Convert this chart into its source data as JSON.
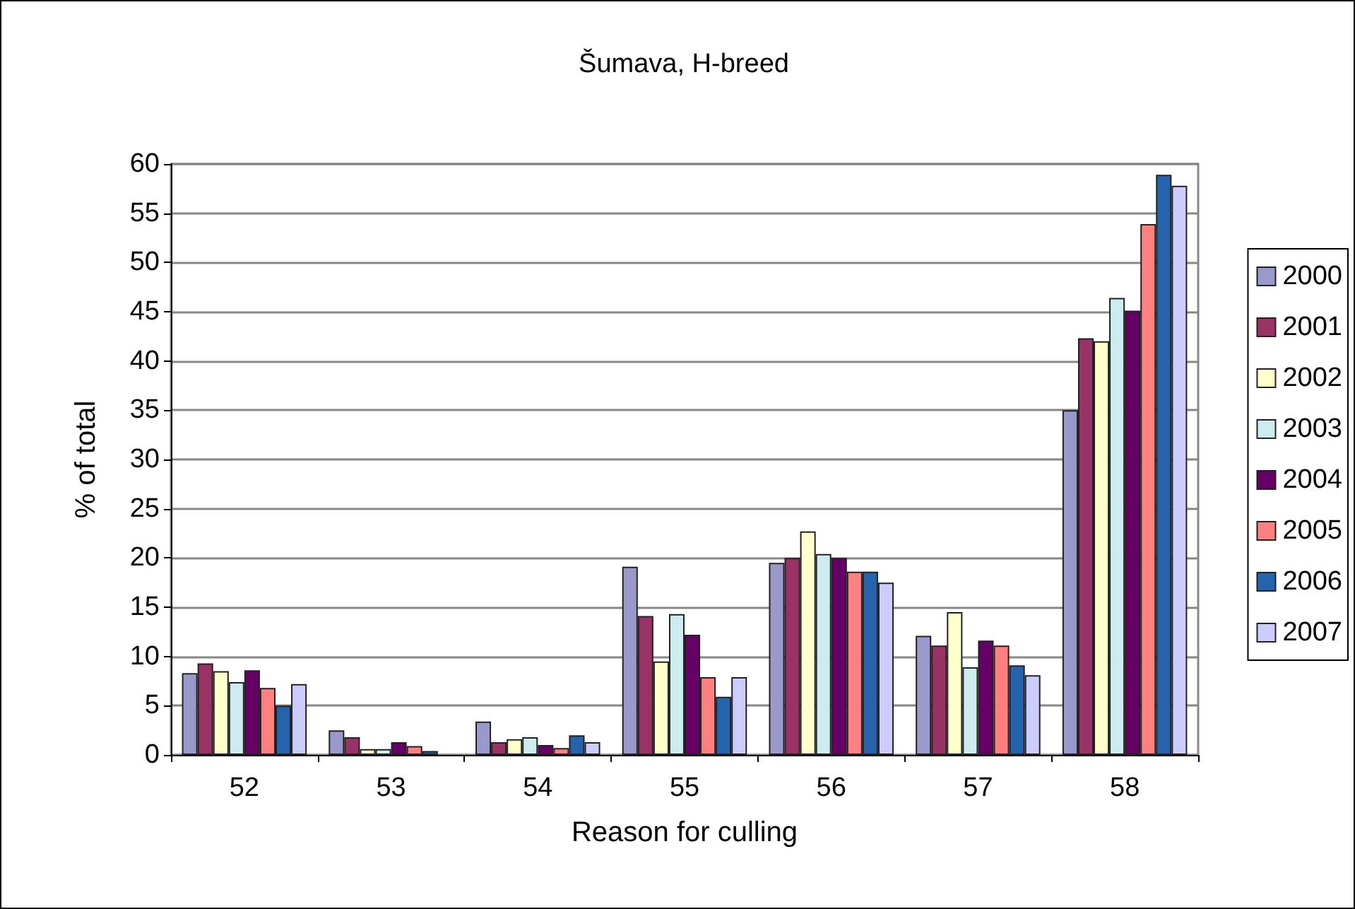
{
  "chart_data": {
    "type": "bar",
    "title": "Šumava, H-breed",
    "xlabel": "Reason for culling",
    "ylabel": "% of total",
    "categories": [
      "52",
      "53",
      "54",
      "55",
      "56",
      "57",
      "58"
    ],
    "series": [
      {
        "name": "2000",
        "color": "#9999cc",
        "values": [
          8.3,
          2.5,
          3.4,
          19.1,
          19.5,
          12.1,
          35.0
        ]
      },
      {
        "name": "2001",
        "color": "#993366",
        "values": [
          9.3,
          1.8,
          1.3,
          14.1,
          20.0,
          11.1,
          42.3
        ]
      },
      {
        "name": "2002",
        "color": "#ffffcc",
        "values": [
          8.5,
          0.6,
          1.6,
          9.5,
          22.7,
          14.5,
          42.0
        ]
      },
      {
        "name": "2003",
        "color": "#ccecef",
        "values": [
          7.4,
          0.6,
          1.8,
          14.3,
          20.4,
          8.9,
          46.4
        ]
      },
      {
        "name": "2004",
        "color": "#660066",
        "values": [
          8.6,
          1.3,
          1.0,
          12.2,
          20.0,
          11.6,
          45.1
        ]
      },
      {
        "name": "2005",
        "color": "#ff8080",
        "values": [
          6.8,
          0.9,
          0.7,
          7.9,
          18.6,
          11.1,
          53.9
        ]
      },
      {
        "name": "2006",
        "color": "#2563ad",
        "values": [
          5.0,
          0.4,
          2.0,
          5.9,
          18.6,
          9.1,
          58.9
        ]
      },
      {
        "name": "2007",
        "color": "#ccccff",
        "values": [
          7.2,
          null,
          1.3,
          7.9,
          17.5,
          8.1,
          57.8
        ]
      }
    ],
    "ylim": [
      0,
      60
    ],
    "yticks": [
      0,
      5,
      10,
      15,
      20,
      25,
      30,
      35,
      40,
      45,
      50,
      55,
      60
    ],
    "grid": "y",
    "legend": "right"
  }
}
